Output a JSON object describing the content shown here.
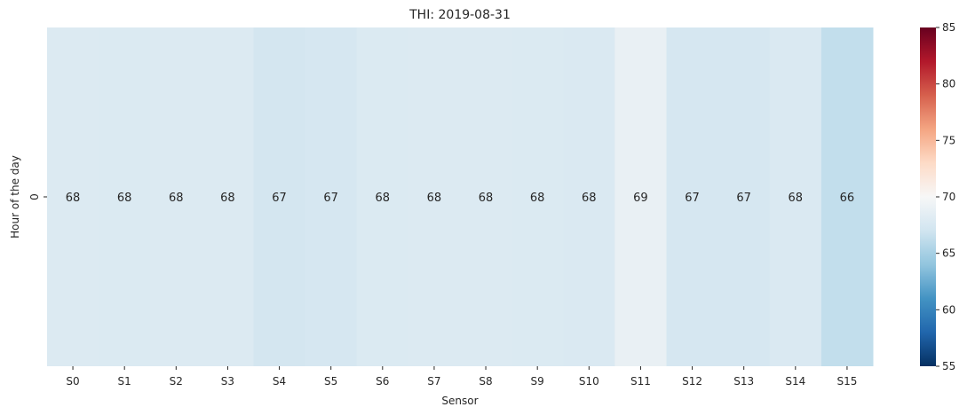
{
  "chart_data": {
    "type": "heatmap",
    "title": "THI: 2019-08-31",
    "xlabel": "Sensor",
    "ylabel": "Hour of the day",
    "x_categories": [
      "S0",
      "S1",
      "S2",
      "S3",
      "S4",
      "S5",
      "S6",
      "S7",
      "S8",
      "S9",
      "S10",
      "S11",
      "S12",
      "S13",
      "S14",
      "S15"
    ],
    "y_categories": [
      "0"
    ],
    "values": [
      [
        67.9,
        67.8,
        67.9,
        67.9,
        67.2,
        67.4,
        67.8,
        67.9,
        67.9,
        67.8,
        67.7,
        68.9,
        67.4,
        67.4,
        67.7,
        66.3
      ]
    ],
    "value_labels": [
      [
        "68",
        "68",
        "68",
        "68",
        "67",
        "67",
        "68",
        "68",
        "68",
        "68",
        "68",
        "69",
        "67",
        "67",
        "68",
        "66"
      ]
    ],
    "colormap": "RdBu_r",
    "vmin": 55,
    "vmax": 85,
    "colorbar_ticks": [
      55,
      60,
      65,
      70,
      75,
      80,
      85
    ],
    "colorbar_tick_labels": [
      "55",
      "60",
      "65",
      "70",
      "75",
      "80",
      "85"
    ],
    "grid": false
  }
}
